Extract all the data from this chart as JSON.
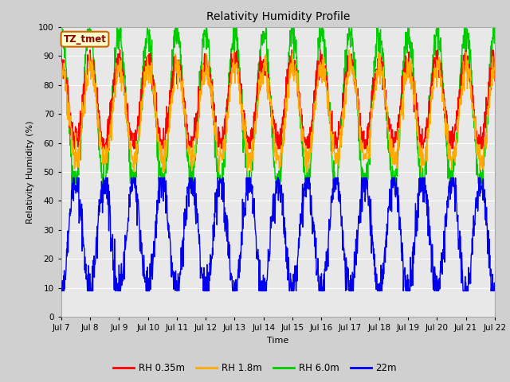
{
  "title": "Relativity Humidity Profile",
  "xlabel": "Time",
  "ylabel": "Relativity Humidity (%)",
  "ylim": [
    0,
    100
  ],
  "yticks": [
    0,
    10,
    20,
    30,
    40,
    50,
    60,
    70,
    80,
    90,
    100
  ],
  "annotation_text": "TZ_tmet",
  "annotation_box_facecolor": "#ffffcc",
  "annotation_box_edgecolor": "#cc6600",
  "annotation_text_color": "#880000",
  "fig_facecolor": "#d0d0d0",
  "plot_facecolor": "#e8e8e8",
  "grid_color": "#ffffff",
  "series_colors": {
    "RH 0.35m": "#ff0000",
    "RH 1.8m": "#ffaa00",
    "RH 6.0m": "#00cc00",
    "22m": "#0000ee"
  },
  "legend_labels": [
    "RH 0.35m",
    "RH 1.8m",
    "RH 6.0m",
    "22m"
  ],
  "x_tick_labels": [
    "Jul 7",
    "Jul 8",
    "Jul 9",
    "Jul 10",
    "Jul 11",
    "Jul 12",
    "Jul 13",
    "Jul 14",
    "Jul 15",
    "Jul 16",
    "Jul 17",
    "Jul 18",
    "Jul 19",
    "Jul 20",
    "Jul 21",
    "Jul 22"
  ],
  "n_days": 16,
  "ppd": 96,
  "rh035_base": 74,
  "rh035_amp": 14,
  "rh035_min": 58,
  "rh035_max": 92,
  "rh18_base": 70,
  "rh18_amp": 16,
  "rh18_min": 50,
  "rh18_max": 92,
  "rh60_base": 72,
  "rh60_amp": 26,
  "rh60_min": 46,
  "rh60_max": 100,
  "rh22_base": 28,
  "rh22_amp": 19,
  "rh22_min": 9,
  "rh22_max": 48
}
